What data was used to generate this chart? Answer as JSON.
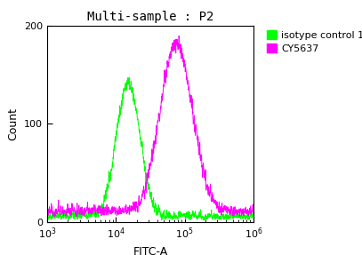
{
  "title": "Multi-sample : P2",
  "xlabel": "FITC-A",
  "ylabel": "Count",
  "xlim_log": [
    3,
    6
  ],
  "ylim": [
    0,
    200
  ],
  "yticks": [
    0,
    100,
    200
  ],
  "xticks_log": [
    3,
    4,
    5,
    6
  ],
  "background_color": "#ffffff",
  "plot_bg_color": "#ffffff",
  "green_color": "#00ff00",
  "magenta_color": "#ff00ff",
  "legend_labels": [
    "isotype control 1",
    "CY5637"
  ],
  "green_peak_log": 4.18,
  "green_sigma_log": 0.175,
  "green_peak_height": 140,
  "magenta_peak_log": 4.88,
  "magenta_sigma_log": 0.24,
  "magenta_peak_height": 175,
  "noise_seed_green": 42,
  "noise_seed_magenta": 99,
  "title_fontsize": 10,
  "axis_fontsize": 9,
  "tick_fontsize": 8,
  "legend_fontsize": 8
}
